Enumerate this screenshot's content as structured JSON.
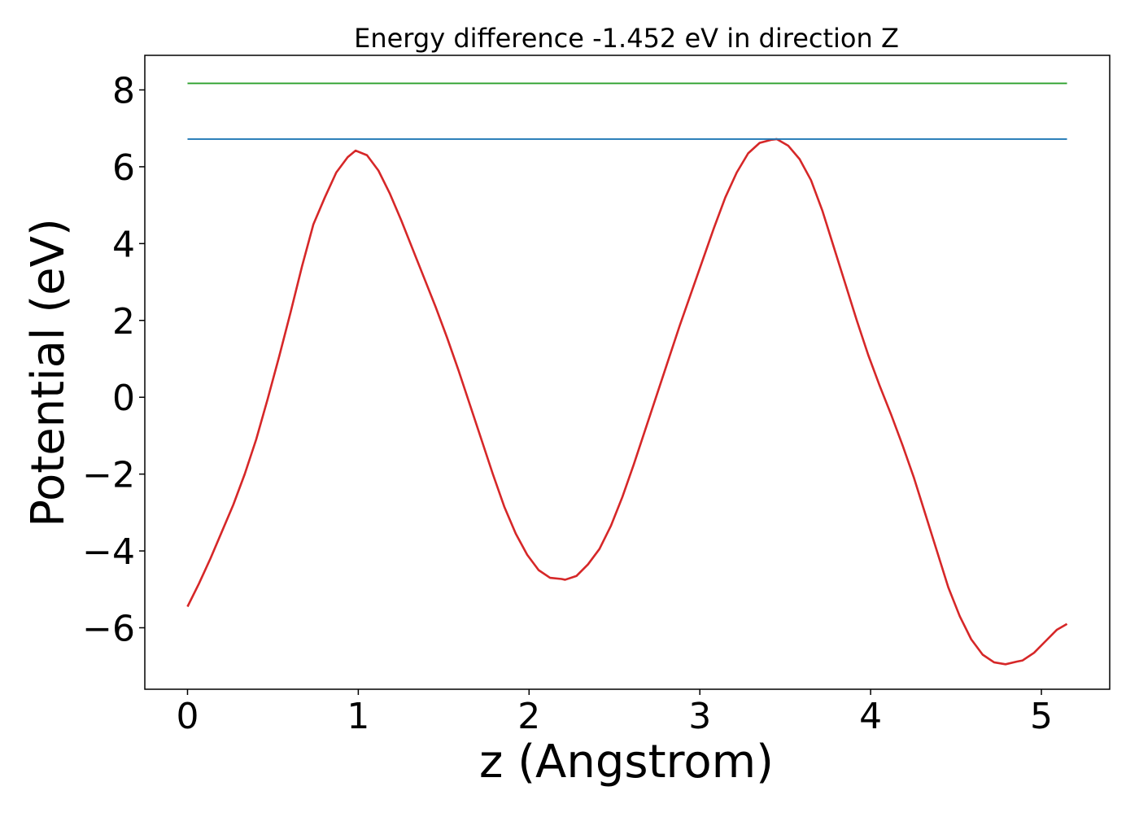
{
  "chart_data": {
    "type": "line",
    "title": "Energy difference -1.452 eV in direction Z",
    "xlabel": "z (Angstrom)",
    "ylabel": "Potential (eV)",
    "xlim": [
      -0.25,
      5.4
    ],
    "ylim": [
      -7.6,
      8.9
    ],
    "grid": false,
    "legend": "none",
    "xticks": [
      0,
      1,
      2,
      3,
      4,
      5
    ],
    "xtick_labels": [
      "0",
      "1",
      "2",
      "3",
      "4",
      "5"
    ],
    "yticks": [
      -6,
      -4,
      -2,
      0,
      2,
      4,
      6,
      8
    ],
    "ytick_labels": [
      "−6",
      "−4",
      "−2",
      "0",
      "2",
      "4",
      "6",
      "8"
    ],
    "series": [
      {
        "color": "#d62728",
        "x": [
          0,
          0.067,
          0.134,
          0.201,
          0.268,
          0.335,
          0.402,
          0.469,
          0.536,
          0.603,
          0.67,
          0.737,
          0.804,
          0.871,
          0.938,
          0.984,
          1.051,
          1.118,
          1.185,
          1.252,
          1.319,
          1.386,
          1.453,
          1.52,
          1.587,
          1.654,
          1.721,
          1.788,
          1.855,
          1.922,
          1.989,
          2.056,
          2.123,
          2.19,
          2.211,
          2.278,
          2.345,
          2.412,
          2.479,
          2.546,
          2.613,
          2.68,
          2.747,
          2.814,
          2.881,
          2.948,
          3.015,
          3.082,
          3.149,
          3.216,
          3.283,
          3.35,
          3.417,
          3.45,
          3.517,
          3.584,
          3.651,
          3.718,
          3.785,
          3.852,
          3.919,
          3.986,
          4.053,
          4.12,
          4.187,
          4.254,
          4.321,
          4.388,
          4.455,
          4.522,
          4.589,
          4.656,
          4.723,
          4.79,
          4.857,
          4.89,
          4.957,
          5.024,
          5.091,
          5.15
        ],
        "y": [
          -5.45,
          -4.85,
          -4.2,
          -3.5,
          -2.8,
          -2.0,
          -1.1,
          -0.05,
          1.05,
          2.2,
          3.4,
          4.5,
          5.2,
          5.85,
          6.25,
          6.42,
          6.3,
          5.9,
          5.3,
          4.6,
          3.85,
          3.1,
          2.35,
          1.55,
          0.7,
          -0.2,
          -1.1,
          -2.0,
          -2.85,
          -3.55,
          -4.1,
          -4.5,
          -4.7,
          -4.73,
          -4.75,
          -4.65,
          -4.35,
          -3.95,
          -3.35,
          -2.6,
          -1.75,
          -0.85,
          0.05,
          0.95,
          1.85,
          2.7,
          3.55,
          4.4,
          5.2,
          5.85,
          6.35,
          6.62,
          6.7,
          6.72,
          6.55,
          6.2,
          5.65,
          4.85,
          3.9,
          2.95,
          2.0,
          1.1,
          0.3,
          -0.45,
          -1.25,
          -2.1,
          -3.05,
          -4.0,
          -4.95,
          -5.7,
          -6.3,
          -6.7,
          -6.9,
          -6.95,
          -6.88,
          -6.85,
          -6.65,
          -6.35,
          -6.05,
          -5.9
        ]
      },
      {
        "color": "#1f77b4",
        "x": [
          0,
          5.15
        ],
        "y": [
          6.72,
          6.72
        ]
      },
      {
        "color": "#2ca02c",
        "x": [
          0,
          5.15
        ],
        "y": [
          8.17,
          8.17
        ]
      }
    ]
  }
}
